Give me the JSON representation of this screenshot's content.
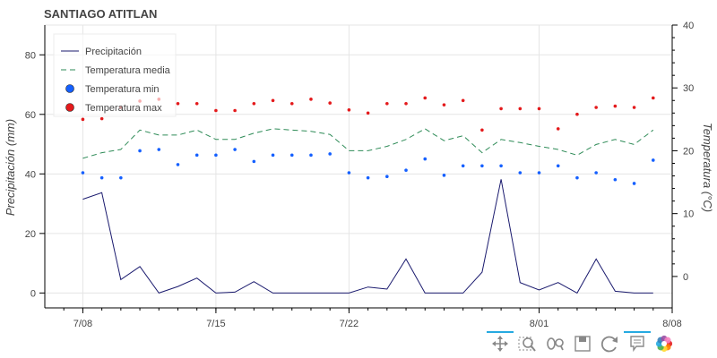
{
  "chart_data": {
    "type": "line",
    "title": "SANTIAGO ATITLAN",
    "ylabel": "Precipitación (mm)",
    "y2label": "Temperatura (°C)",
    "ylim": [
      -5,
      90
    ],
    "y2lim": [
      -5,
      40
    ],
    "xlim": [
      "2024-07-06",
      "2024-08-08"
    ],
    "yticks": [
      0,
      20,
      40,
      60,
      80
    ],
    "y2ticks": [
      0,
      10,
      20,
      30,
      40
    ],
    "xticks": [
      {
        "date": "2024-07-08",
        "label": "7/08"
      },
      {
        "date": "2024-07-15",
        "label": "7/15"
      },
      {
        "date": "2024-07-22",
        "label": "7/22"
      },
      {
        "date": "2024-08-01",
        "label": "8/01"
      },
      {
        "date": "2024-08-08",
        "label": "8/08"
      }
    ],
    "grid": true,
    "legend_position": "top-left",
    "dates": [
      "2024-07-08",
      "2024-07-09",
      "2024-07-10",
      "2024-07-11",
      "2024-07-12",
      "2024-07-13",
      "2024-07-14",
      "2024-07-15",
      "2024-07-16",
      "2024-07-17",
      "2024-07-18",
      "2024-07-19",
      "2024-07-20",
      "2024-07-21",
      "2024-07-22",
      "2024-07-23",
      "2024-07-24",
      "2024-07-25",
      "2024-07-26",
      "2024-07-27",
      "2024-07-28",
      "2024-07-29",
      "2024-07-30",
      "2024-07-31",
      "2024-08-01",
      "2024-08-02",
      "2024-08-03",
      "2024-08-04",
      "2024-08-05",
      "2024-08-06",
      "2024-08-07"
    ],
    "series": [
      {
        "name": "Precipitación",
        "kind": "line",
        "axis": "left",
        "color": "#1a1a6e",
        "values": [
          31.5,
          33.7,
          4.5,
          8.9,
          0,
          2.2,
          5.0,
          0,
          0.3,
          3.8,
          0,
          0,
          0,
          0,
          0,
          2.0,
          1.3,
          11.4,
          0,
          0,
          0,
          7.0,
          38.2,
          3.5,
          1.0,
          3.5,
          0,
          11.4,
          0.6,
          0,
          0
        ]
      },
      {
        "name": "Temperatura media",
        "kind": "dashed-line",
        "axis": "right",
        "color": "#2e8b57",
        "values": [
          18.8,
          19.7,
          20.2,
          23.3,
          22.5,
          22.5,
          23.3,
          21.8,
          21.8,
          22.8,
          23.5,
          23.3,
          23.1,
          22.6,
          20.0,
          20.0,
          20.7,
          21.8,
          23.5,
          21.6,
          22.4,
          19.7,
          21.8,
          21.3,
          20.7,
          20.2,
          19.3,
          21.0,
          21.8,
          21.0,
          23.3
        ]
      },
      {
        "name": "Temperatura min",
        "kind": "scatter",
        "axis": "right",
        "color": "#1560ff",
        "values": [
          16.5,
          15.7,
          15.7,
          20.0,
          20.2,
          17.8,
          19.3,
          19.3,
          20.2,
          18.3,
          19.3,
          19.3,
          19.3,
          19.5,
          16.5,
          15.7,
          15.9,
          16.9,
          18.7,
          16.1,
          17.6,
          17.6,
          17.6,
          16.5,
          16.5,
          17.6,
          15.7,
          16.5,
          15.4,
          14.8,
          18.5
        ]
      },
      {
        "name": "Temperatura max",
        "kind": "scatter",
        "axis": "right",
        "color": "#e41a1c",
        "values": [
          25.0,
          25.1,
          26.9,
          27.9,
          28.2,
          27.5,
          27.5,
          26.4,
          26.4,
          27.5,
          28.0,
          27.5,
          28.2,
          27.6,
          26.5,
          26.0,
          27.5,
          27.5,
          28.4,
          27.3,
          28.0,
          23.3,
          26.7,
          26.7,
          26.7,
          23.5,
          25.8,
          26.9,
          27.1,
          26.9,
          28.4
        ]
      }
    ]
  },
  "toolbar": {
    "tools": [
      {
        "name": "pan-tool",
        "active": true
      },
      {
        "name": "box-zoom-tool",
        "active": false
      },
      {
        "name": "wheel-zoom-tool",
        "active": false
      },
      {
        "name": "save-tool",
        "active": false
      },
      {
        "name": "reset-tool",
        "active": false
      },
      {
        "name": "hover-tool",
        "active": true
      },
      {
        "name": "bokeh-logo",
        "active": false
      }
    ]
  }
}
